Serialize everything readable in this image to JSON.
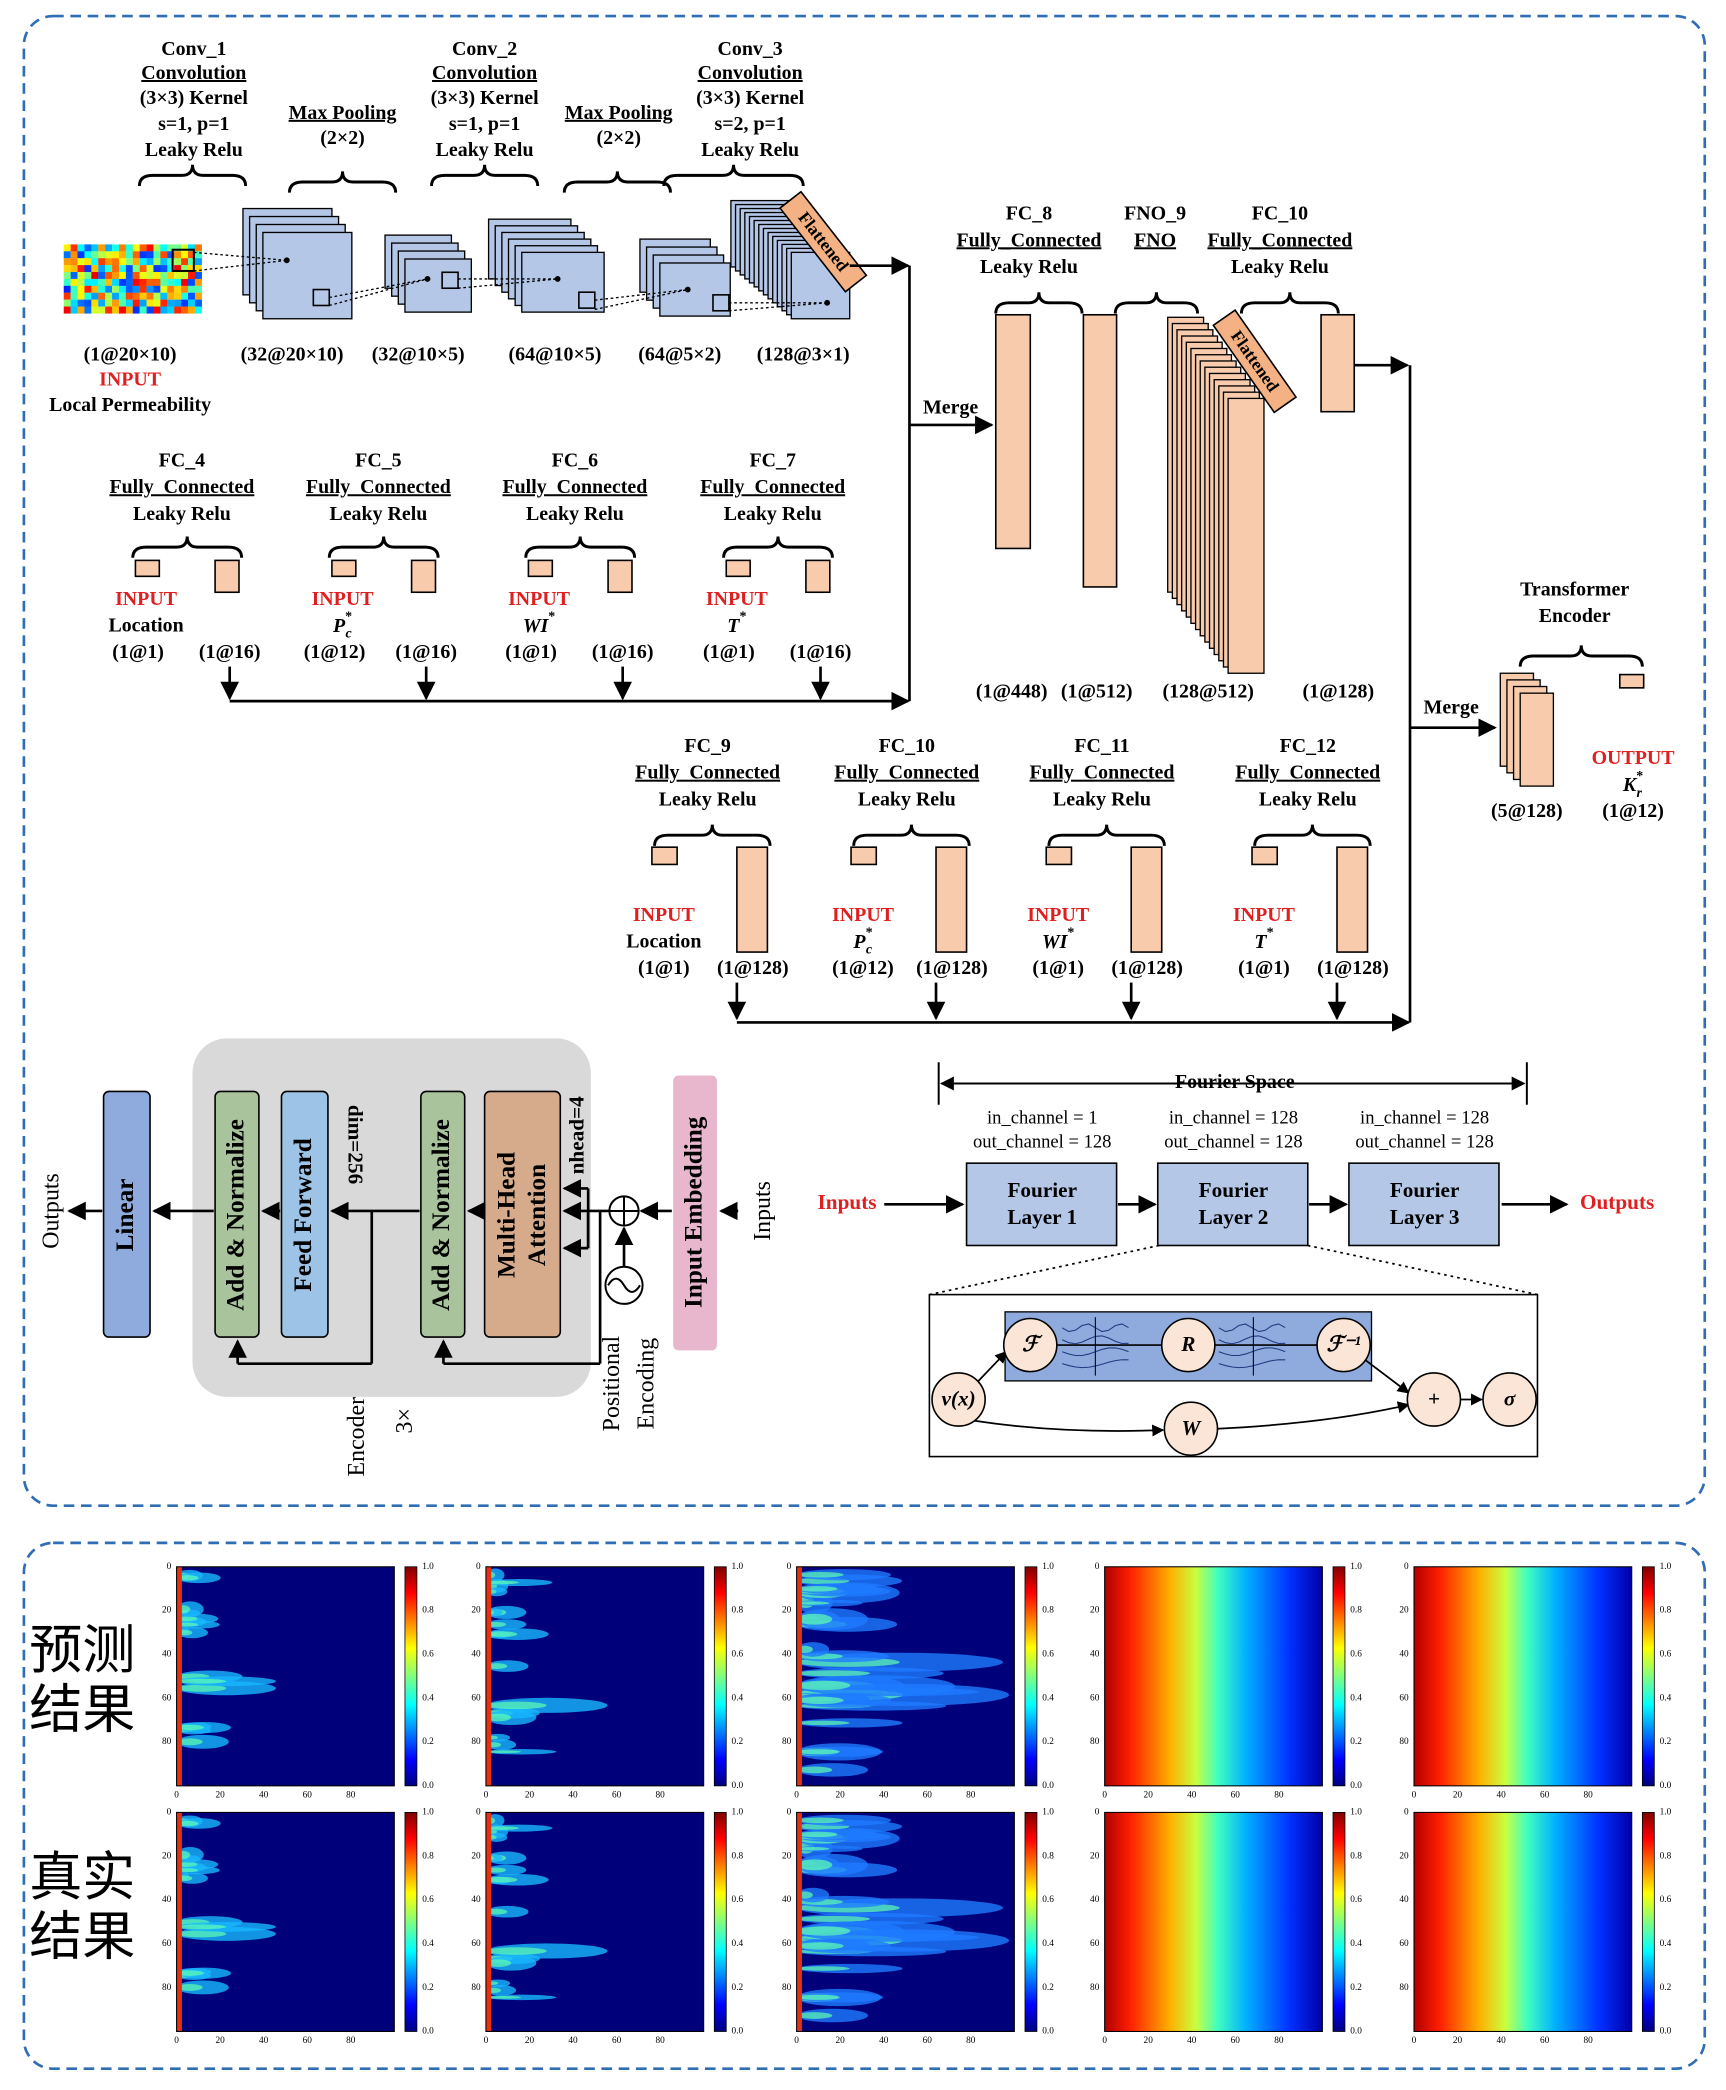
{
  "cnn": {
    "blocks": [
      {
        "title": "Conv_1",
        "op": "Convolution",
        "lines": [
          "(3×3) Kernel",
          "s=1, p=1",
          "Leaky Relu"
        ]
      },
      {
        "op": "Max Pooling",
        "lines": [
          "(2×2)"
        ]
      },
      {
        "title": "Conv_2",
        "op": "Convolution",
        "lines": [
          "(3×3) Kernel",
          "s=1, p=1",
          "Leaky Relu"
        ]
      },
      {
        "op": "Max Pooling",
        "lines": [
          "(2×2)"
        ]
      },
      {
        "title": "Conv_3",
        "op": "Convolution",
        "lines": [
          "(3×3) Kernel",
          "s=2, p=1",
          "Leaky Relu"
        ]
      }
    ],
    "shapes": [
      "(1@20×10)",
      "(32@20×10)",
      "(32@10×5)",
      "(64@10×5)",
      "(64@5×2)",
      "(128@3×1)"
    ],
    "input_tag": "INPUT",
    "input_name": "Local Permeability",
    "flattened": "Flattened"
  },
  "fc_left": [
    {
      "title": "FC_4",
      "op": "Fully_Connected",
      "act": "Leaky Relu",
      "input_tag": "INPUT",
      "input_name": "Location",
      "shapes": [
        "(1@1)",
        "(1@16)"
      ]
    },
    {
      "title": "FC_5",
      "op": "Fully_Connected",
      "act": "Leaky Relu",
      "input_tag": "INPUT",
      "input_name": {
        "base": "P",
        "sub": "c",
        "sup": "*"
      },
      "shapes": [
        "(1@12)",
        "(1@16)"
      ]
    },
    {
      "title": "FC_6",
      "op": "Fully_Connected",
      "act": "Leaky Relu",
      "input_tag": "INPUT",
      "input_name": {
        "base": "WI",
        "sup": "*"
      },
      "shapes": [
        "(1@1)",
        "(1@16)"
      ]
    },
    {
      "title": "FC_7",
      "op": "Fully_Connected",
      "act": "Leaky Relu",
      "input_tag": "INPUT",
      "input_name": {
        "base": "T",
        "sup": "*"
      },
      "shapes": [
        "(1@1)",
        "(1@16)"
      ]
    }
  ],
  "merge_labels": [
    "Merge",
    "Merge"
  ],
  "middle": {
    "fc8": {
      "title": "FC_8",
      "op": "Fully_Connected",
      "act": "Leaky Relu"
    },
    "fno9": {
      "title": "FNO_9",
      "op": "FNO"
    },
    "fc10": {
      "title": "FC_10",
      "op": "Fully_Connected",
      "act": "Leaky Relu"
    },
    "shapes": [
      "(1@448)",
      "(1@512)",
      "(128@512)",
      "(1@128)"
    ],
    "flattened": "Flattened"
  },
  "transformer": {
    "title": [
      "Transformer",
      "Encoder"
    ],
    "shape": "(5@128)",
    "output_tag": "OUTPUT",
    "output_name": {
      "base": "K",
      "sub": "r",
      "sup": "*"
    },
    "output_shape": "(1@12)"
  },
  "fc_right": [
    {
      "title": "FC_9",
      "op": "Fully_Connected",
      "act": "Leaky Relu",
      "input_tag": "INPUT",
      "input_name": "Location",
      "shapes": [
        "(1@1)",
        "(1@128)"
      ]
    },
    {
      "title": "FC_10",
      "op": "Fully_Connected",
      "act": "Leaky Relu",
      "input_tag": "INPUT",
      "input_name": {
        "base": "P",
        "sub": "c",
        "sup": "*"
      },
      "shapes": [
        "(1@12)",
        "(1@128)"
      ]
    },
    {
      "title": "FC_11",
      "op": "Fully_Connected",
      "act": "Leaky Relu",
      "input_tag": "INPUT",
      "input_name": {
        "base": "WI",
        "sup": "*"
      },
      "shapes": [
        "(1@1)",
        "(1@128)"
      ]
    },
    {
      "title": "FC_12",
      "op": "Fully_Connected",
      "act": "Leaky Relu",
      "input_tag": "INPUT",
      "input_name": {
        "base": "T",
        "sup": "*"
      },
      "shapes": [
        "(1@1)",
        "(1@128)"
      ]
    }
  ],
  "encoder_diagram": {
    "outputs": "Outputs",
    "linear": "Linear",
    "add_norm": [
      "Add & Normalize",
      "Add & Normalize"
    ],
    "feed_forward": "Feed Forward",
    "dim": "dim=256",
    "attention": [
      "Multi-Head",
      "Attention"
    ],
    "nhead": "nhead=4",
    "input_embedding": "Input Embedding",
    "inputs": "Inputs",
    "positional_encoding": [
      "Positional",
      "Encoding"
    ],
    "encoder": "Encoder",
    "repeat": "3×"
  },
  "fourier": {
    "space": "Fourier Space",
    "inputs": "Inputs",
    "outputs": "Outputs",
    "layers": [
      {
        "name": [
          "Fourier",
          "Layer 1"
        ],
        "in": "in_channel = 1",
        "out": "out_channel = 128"
      },
      {
        "name": [
          "Fourier",
          "Layer 2"
        ],
        "in": "in_channel = 128",
        "out": "out_channel = 128"
      },
      {
        "name": [
          "Fourier",
          "Layer 3"
        ],
        "in": "in_channel = 128",
        "out": "out_channel = 128"
      }
    ],
    "nodes": {
      "f": "ℱ",
      "r": "R",
      "f_inv": "ℱ⁻¹",
      "v": "v(x)",
      "w": "W",
      "plus": "+",
      "sigma": "σ"
    }
  },
  "results": {
    "row_labels": [
      [
        "预测",
        "结果"
      ],
      [
        "真实",
        "结果"
      ]
    ],
    "axis_ticks": [
      "0",
      "20",
      "40",
      "60",
      "80"
    ],
    "colorbar_ticks": [
      "0.0",
      "0.2",
      "0.4",
      "0.6",
      "0.8",
      "1.0"
    ]
  }
}
